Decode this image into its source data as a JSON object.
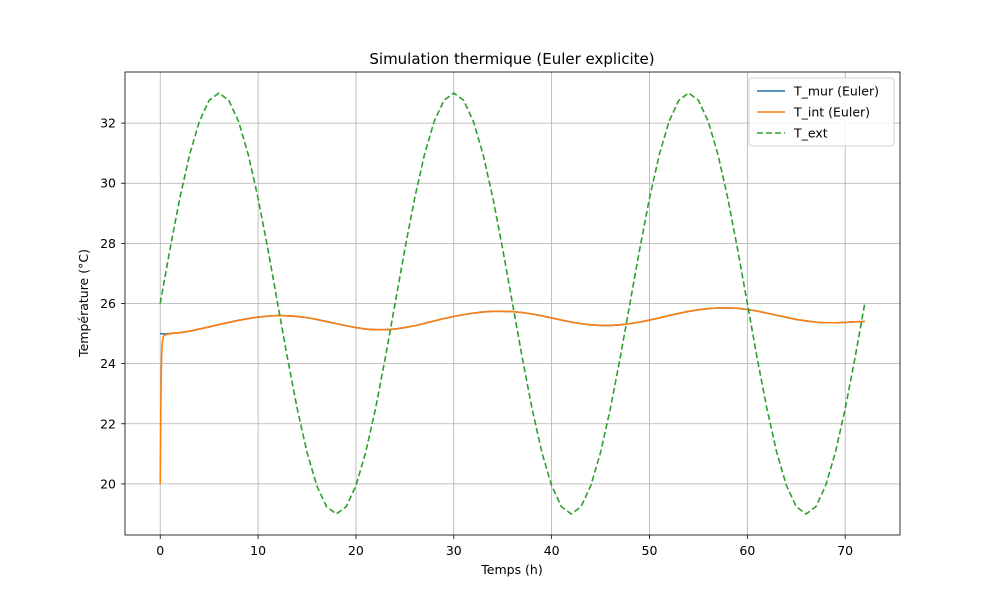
{
  "chart_data": {
    "type": "line",
    "title": "Simulation thermique (Euler explicite)",
    "xlabel": "Temps (h)",
    "ylabel": "Température (°C)",
    "xlim": [
      -3.6,
      75.6
    ],
    "ylim": [
      18.3,
      33.7
    ],
    "xticks": [
      0,
      10,
      20,
      30,
      40,
      50,
      60,
      70
    ],
    "yticks": [
      20,
      22,
      24,
      26,
      28,
      30,
      32
    ],
    "grid": true,
    "legend_position": "top-right",
    "series": [
      {
        "name": "T_mur (Euler)",
        "color": "#1f77b4",
        "style": "solid",
        "x": [
          0,
          0.3,
          0.6,
          1,
          2,
          3,
          4,
          5,
          6,
          7,
          8,
          9,
          10,
          11,
          12,
          13,
          14,
          15,
          16,
          17,
          18,
          19,
          20,
          21,
          22,
          23,
          24,
          25,
          26,
          27,
          28,
          29,
          30,
          31,
          32,
          33,
          34,
          35,
          36,
          37,
          38,
          39,
          40,
          41,
          42,
          43,
          44,
          45,
          46,
          47,
          48,
          49,
          50,
          51,
          52,
          53,
          54,
          55,
          56,
          57,
          58,
          59,
          60,
          61,
          62,
          63,
          64,
          65,
          66,
          67,
          68,
          69,
          70,
          71,
          72
        ],
        "y": [
          25.0,
          24.99,
          24.99,
          25.0,
          25.03,
          25.08,
          25.15,
          25.22,
          25.3,
          25.37,
          25.44,
          25.5,
          25.55,
          25.58,
          25.6,
          25.59,
          25.57,
          25.53,
          25.47,
          25.4,
          25.33,
          25.26,
          25.2,
          25.15,
          25.13,
          25.13,
          25.15,
          25.2,
          25.26,
          25.34,
          25.42,
          25.5,
          25.57,
          25.63,
          25.68,
          25.72,
          25.74,
          25.74,
          25.73,
          25.7,
          25.65,
          25.59,
          25.52,
          25.45,
          25.38,
          25.33,
          25.29,
          25.27,
          25.27,
          25.29,
          25.33,
          25.38,
          25.45,
          25.52,
          25.6,
          25.67,
          25.74,
          25.79,
          25.83,
          25.85,
          25.85,
          25.84,
          25.8,
          25.75,
          25.68,
          25.61,
          25.54,
          25.47,
          25.42,
          25.38,
          25.36,
          25.36,
          25.37,
          25.39,
          25.4
        ]
      },
      {
        "name": "T_int (Euler)",
        "color": "#ff7f0e",
        "style": "solid",
        "x": [
          0,
          0.05,
          0.1,
          0.15,
          0.2,
          0.3,
          0.4,
          0.6,
          0.8,
          1,
          2,
          3,
          4,
          5,
          6,
          7,
          8,
          9,
          10,
          11,
          12,
          13,
          14,
          15,
          16,
          17,
          18,
          19,
          20,
          21,
          22,
          23,
          24,
          25,
          26,
          27,
          28,
          29,
          30,
          31,
          32,
          33,
          34,
          35,
          36,
          37,
          38,
          39,
          40,
          41,
          42,
          43,
          44,
          45,
          46,
          47,
          48,
          49,
          50,
          51,
          52,
          53,
          54,
          55,
          56,
          57,
          58,
          59,
          60,
          61,
          62,
          63,
          64,
          65,
          66,
          67,
          68,
          69,
          70,
          71,
          72
        ],
        "y": [
          20.0,
          22.3,
          23.6,
          24.3,
          24.65,
          24.88,
          24.94,
          24.97,
          24.98,
          25.0,
          25.03,
          25.08,
          25.15,
          25.22,
          25.3,
          25.37,
          25.44,
          25.5,
          25.55,
          25.58,
          25.6,
          25.59,
          25.57,
          25.53,
          25.47,
          25.4,
          25.33,
          25.26,
          25.2,
          25.15,
          25.13,
          25.13,
          25.15,
          25.2,
          25.26,
          25.34,
          25.42,
          25.5,
          25.57,
          25.63,
          25.68,
          25.72,
          25.74,
          25.74,
          25.73,
          25.7,
          25.65,
          25.59,
          25.52,
          25.45,
          25.38,
          25.33,
          25.29,
          25.27,
          25.27,
          25.29,
          25.33,
          25.38,
          25.45,
          25.52,
          25.6,
          25.67,
          25.74,
          25.79,
          25.83,
          25.85,
          25.85,
          25.84,
          25.8,
          25.75,
          25.68,
          25.61,
          25.54,
          25.47,
          25.42,
          25.38,
          25.36,
          25.36,
          25.37,
          25.39,
          25.4
        ]
      },
      {
        "name": "T_ext",
        "color": "#2ca02c",
        "style": "dashed",
        "x": [
          0,
          1,
          2,
          3,
          4,
          5,
          6,
          7,
          8,
          9,
          10,
          11,
          12,
          13,
          14,
          15,
          16,
          17,
          18,
          19,
          20,
          21,
          22,
          23,
          24,
          25,
          26,
          27,
          28,
          29,
          30,
          31,
          32,
          33,
          34,
          35,
          36,
          37,
          38,
          39,
          40,
          41,
          42,
          43,
          44,
          45,
          46,
          47,
          48,
          49,
          50,
          51,
          52,
          53,
          54,
          55,
          56,
          57,
          58,
          59,
          60,
          61,
          62,
          63,
          64,
          65,
          66,
          67,
          68,
          69,
          70,
          71,
          72
        ],
        "y": [
          26.0,
          27.81,
          29.5,
          30.95,
          32.06,
          32.76,
          33.0,
          32.76,
          32.06,
          30.95,
          29.5,
          27.81,
          26.0,
          24.19,
          22.5,
          21.05,
          19.94,
          19.24,
          19.0,
          19.24,
          19.94,
          21.05,
          22.5,
          24.19,
          26.0,
          27.81,
          29.5,
          30.95,
          32.06,
          32.76,
          33.0,
          32.76,
          32.06,
          30.95,
          29.5,
          27.81,
          26.0,
          24.19,
          22.5,
          21.05,
          19.94,
          19.24,
          19.0,
          19.24,
          19.94,
          21.05,
          22.5,
          24.19,
          26.0,
          27.81,
          29.5,
          30.95,
          32.06,
          32.76,
          33.0,
          32.76,
          32.06,
          30.95,
          29.5,
          27.81,
          26.0,
          24.19,
          22.5,
          21.05,
          19.94,
          19.24,
          19.0,
          19.24,
          19.94,
          21.05,
          22.5,
          24.19,
          26.0
        ]
      }
    ]
  }
}
